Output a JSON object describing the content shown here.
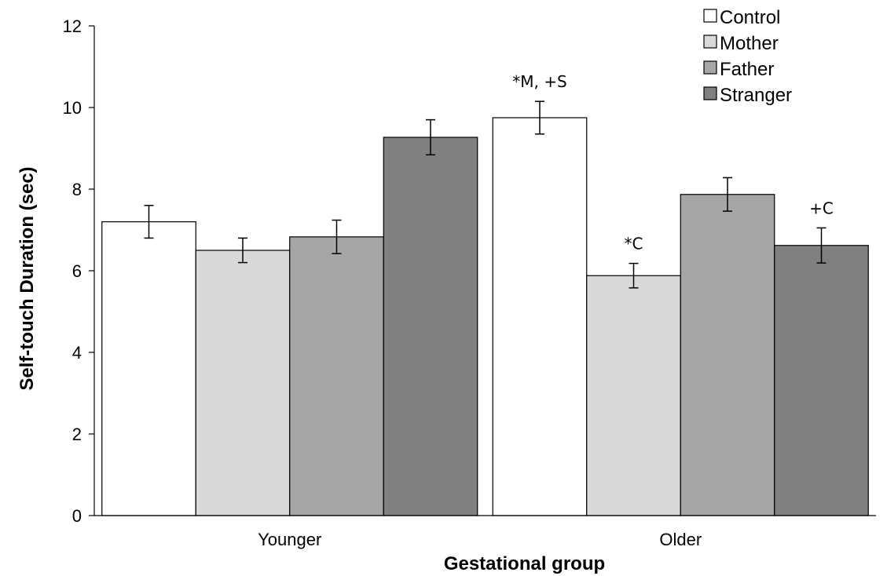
{
  "chart_data": {
    "type": "bar",
    "xlabel": "Gestational group",
    "ylabel": "Self-touch Duration (sec)",
    "ylim": [
      0,
      12
    ],
    "yticks": [
      "0",
      "2",
      "4",
      "6",
      "8",
      "10",
      "12"
    ],
    "categories": [
      "Younger",
      "Older"
    ],
    "legend_position": "top-right",
    "series": [
      {
        "name": "Control",
        "color": "#ffffff",
        "values": [
          7.2,
          9.75
        ],
        "errors": [
          0.4,
          0.4
        ],
        "annotations": [
          "",
          "*M, +S"
        ]
      },
      {
        "name": "Mother",
        "color": "#d9d9d9",
        "values": [
          6.5,
          5.88
        ],
        "errors": [
          0.3,
          0.3
        ],
        "annotations": [
          "",
          "*C"
        ]
      },
      {
        "name": "Father",
        "color": "#a6a6a6",
        "values": [
          6.83,
          7.87
        ],
        "errors": [
          0.41,
          0.41
        ],
        "annotations": [
          "",
          ""
        ]
      },
      {
        "name": "Stranger",
        "color": "#808080",
        "values": [
          9.27,
          6.62
        ],
        "errors": [
          0.43,
          0.43
        ],
        "annotations": [
          "",
          "+C"
        ]
      }
    ]
  }
}
